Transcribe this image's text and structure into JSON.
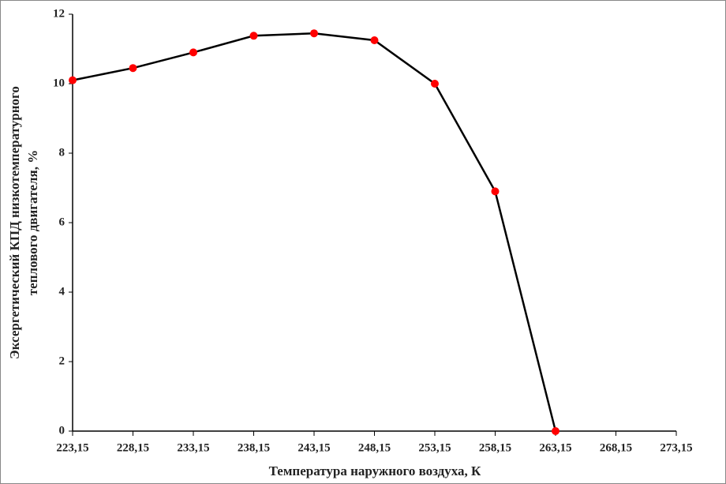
{
  "chart_data": {
    "type": "line",
    "xlabel": "Температура наружного воздуха, К",
    "ylabel": [
      "Эксергетический КПД низкотемпературного",
      "теплового двигателя, %"
    ],
    "x": [
      223.15,
      228.15,
      233.15,
      238.15,
      243.15,
      248.15,
      253.15,
      258.15,
      263.15
    ],
    "values": [
      10.1,
      10.45,
      10.9,
      11.38,
      11.45,
      11.25,
      10.0,
      6.9,
      0
    ],
    "color": "#000000",
    "marker_color": "#ff0000",
    "xlim": [
      223.15,
      273.15
    ],
    "xticks": [
      {
        "value": 223.15,
        "label": "223,15"
      },
      {
        "value": 228.15,
        "label": "228,15"
      },
      {
        "value": 233.15,
        "label": "233,15"
      },
      {
        "value": 238.15,
        "label": "238,15"
      },
      {
        "value": 243.15,
        "label": "243,15"
      },
      {
        "value": 248.15,
        "label": "248,15"
      },
      {
        "value": 253.15,
        "label": "253,15"
      },
      {
        "value": 258.15,
        "label": "258,15"
      },
      {
        "value": 263.15,
        "label": "263,15"
      },
      {
        "value": 268.15,
        "label": "268,15"
      },
      {
        "value": 273.15,
        "label": "273,15"
      }
    ],
    "ylim": [
      0,
      12
    ],
    "yticks": [
      0,
      2,
      4,
      6,
      8,
      10,
      12
    ],
    "grid": false
  }
}
